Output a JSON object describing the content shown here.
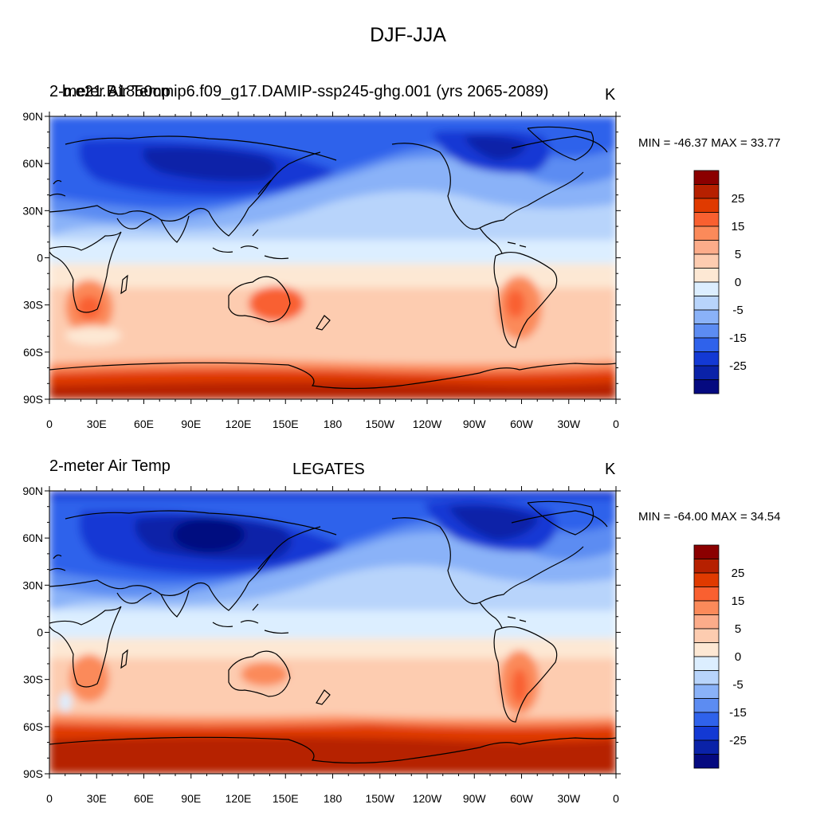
{
  "figure": {
    "title": "DJF-JJA"
  },
  "panels": [
    {
      "left_label": "2-meter Air Temp",
      "center_label": "b.e21.B1850cmip6.f09_g17.DAMIP-ssp245-ghg.001 (yrs 2065-2089)",
      "units": "K",
      "minmax": "MIN = -46.37 MAX =  33.77"
    },
    {
      "left_label": "2-meter Air Temp",
      "center_label": "LEGATES",
      "units": "K",
      "minmax": "MIN = -64.00 MAX =  34.54"
    }
  ],
  "axes": {
    "lat_ticks": [
      "90N",
      "60N",
      "30N",
      "0",
      "30S",
      "60S",
      "90S"
    ],
    "lon_ticks": [
      "0",
      "30E",
      "60E",
      "90E",
      "120E",
      "150E",
      "180",
      "150W",
      "120W",
      "90W",
      "60W",
      "30W",
      "0"
    ]
  },
  "colorbar": {
    "labels": [
      "25",
      "15",
      "5",
      "0",
      "-5",
      "-15",
      "-25"
    ],
    "colors": [
      "#8b0000",
      "#b62000",
      "#e03a00",
      "#f96030",
      "#fb8a5a",
      "#fcac8a",
      "#fdccb0",
      "#fde8d4",
      "#dceeff",
      "#b8d4fb",
      "#8ab2f8",
      "#5c8cf2",
      "#2f62eb",
      "#1339d4",
      "#0a22a8",
      "#050a80"
    ]
  },
  "chart_data": {
    "type": "heatmap",
    "title": "DJF-JJA",
    "units": "K",
    "x_range": [
      "0",
      "0"
    ],
    "y_range": [
      "90S",
      "90N"
    ],
    "contour_levels": [
      -35,
      -30,
      -25,
      -20,
      -15,
      -10,
      -5,
      -2,
      0,
      2,
      5,
      10,
      15,
      20,
      25,
      30
    ],
    "panels": [
      {
        "name": "b.e21.B1850cmip6.f09_g17.DAMIP-ssp245-ghg.001 (yrs 2065-2089)",
        "min": -46.37,
        "max": 33.77
      },
      {
        "name": "LEGATES",
        "min": -64.0,
        "max": 34.54
      }
    ]
  }
}
